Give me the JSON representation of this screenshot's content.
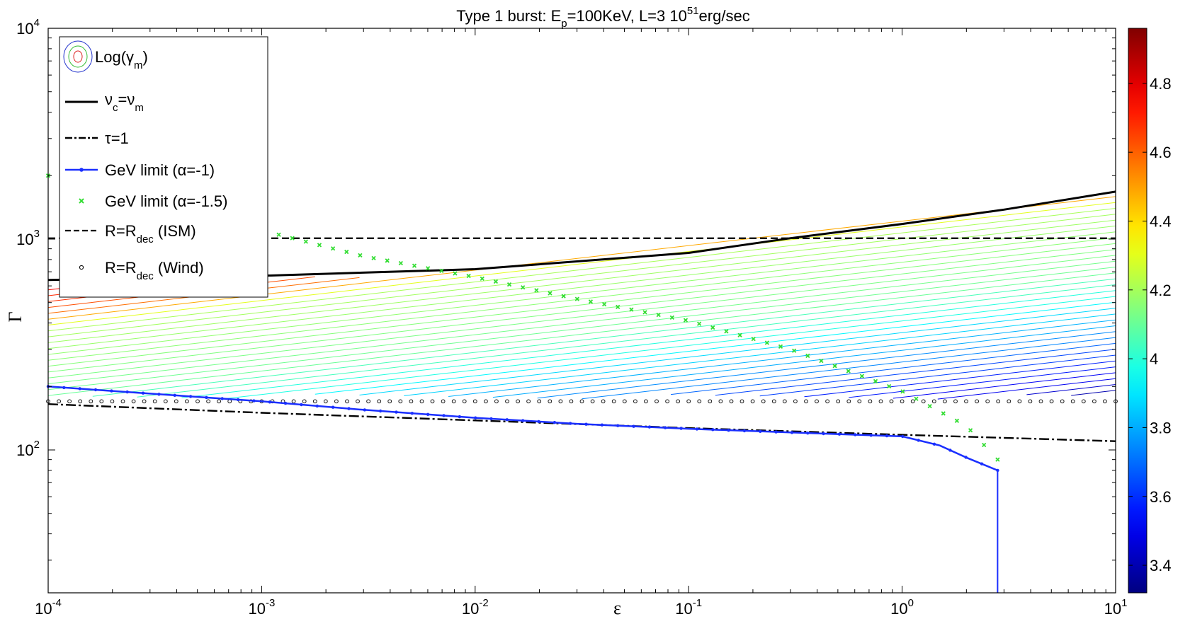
{
  "chart_data": {
    "type": "line",
    "title": {
      "prefix": "Type 1 burst: E",
      "sub": "p",
      "middle": "=100KeV, L=3 10",
      "sup": "51",
      "suffix": "erg/sec"
    },
    "xlabel": "ε",
    "ylabel": "Γ",
    "x_scale": "log",
    "y_scale": "log",
    "xlim": [
      0.0001,
      10
    ],
    "ylim": [
      21,
      10000
    ],
    "x_ticks": [
      {
        "base": "10",
        "exp": "-4"
      },
      {
        "base": "10",
        "exp": "-3"
      },
      {
        "base": "10",
        "exp": "-2"
      },
      {
        "base": "10",
        "exp": "-1"
      },
      {
        "base": "10",
        "exp": "0"
      },
      {
        "base": "10",
        "exp": "1"
      }
    ],
    "y_ticks": [
      {
        "base": "10",
        "exp": "2"
      },
      {
        "base": "10",
        "exp": "3"
      },
      {
        "base": "10",
        "exp": "4"
      }
    ],
    "grid": false,
    "legend_position": "top-left",
    "legend": [
      {
        "label": "Log(γ",
        "sub": "m",
        "tail": ")",
        "style": "contour"
      },
      {
        "label": "ν",
        "sub": "c",
        "mid": "=ν",
        "sub2": "m",
        "style": "solid-black"
      },
      {
        "label": "τ=1",
        "style": "dashdot-black"
      },
      {
        "label": "GeV limit (α=-1)",
        "style": "blue-line-dots"
      },
      {
        "label": "GeV limit (α=-1.5)",
        "style": "green-x"
      },
      {
        "label": "R=R",
        "sub": "dec",
        "tail": " (ISM)",
        "style": "dashed-black"
      },
      {
        "label": "R=R",
        "sub": "dec",
        "tail": " (Wind)",
        "style": "black-circles"
      }
    ],
    "series": [
      {
        "name": "νc=νm",
        "color": "#000000",
        "x": [
          0.0001,
          0.001,
          0.01,
          0.1,
          0.3,
          1,
          3,
          10
        ],
        "y": [
          640,
          670,
          720,
          860,
          1010,
          1180,
          1380,
          1680
        ]
      },
      {
        "name": "τ=1",
        "color": "#000000",
        "x": [
          0.0001,
          0.001,
          0.01,
          0.1,
          1,
          10
        ],
        "y": [
          165,
          150,
          138,
          127,
          118,
          110
        ]
      },
      {
        "name": "GeV limit (α=-1)",
        "color": "#1a2fff",
        "x": [
          0.0001,
          0.0003,
          0.001,
          0.003,
          0.01,
          0.03,
          0.1,
          0.3,
          1,
          1.5,
          2,
          2.8
        ],
        "y": [
          200,
          185,
          170,
          155,
          142,
          133,
          126,
          121,
          116,
          105,
          92,
          80
        ]
      },
      {
        "name": "GeV limit (α=-1.5)",
        "color": "#33dd33",
        "x": [
          0.0001,
          0.0003,
          0.001,
          0.003,
          0.01,
          0.03,
          0.1,
          0.3,
          1,
          2,
          2.8
        ],
        "y": [
          2000,
          1500,
          1100,
          830,
          660,
          520,
          410,
          300,
          190,
          130,
          90
        ]
      },
      {
        "name": "R=Rdec (ISM)",
        "color": "#000000",
        "x": [
          0.0001,
          10
        ],
        "y": [
          1010,
          1010
        ]
      },
      {
        "name": "R=Rdec (Wind)",
        "color": "#000000",
        "x": [
          0.0001,
          10
        ],
        "y": [
          170,
          170
        ]
      }
    ],
    "contour_field": {
      "name": "Log(γm)",
      "colorbar_range": [
        3.32,
        4.96
      ],
      "colorbar_ticks": [
        "3.4",
        "3.6",
        "3.8",
        "4",
        "4.2",
        "4.4",
        "4.6",
        "4.8"
      ],
      "level_count": 60
    }
  }
}
